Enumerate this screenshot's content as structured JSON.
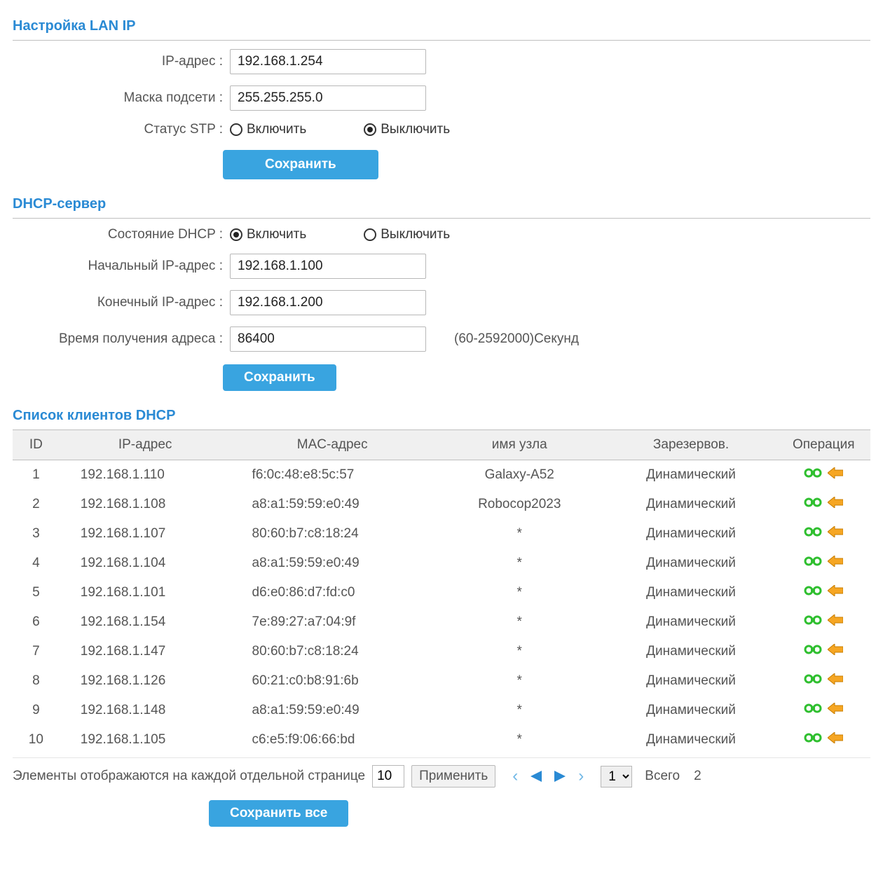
{
  "colors": {
    "accent": "#2a8ad4",
    "button_bg": "#39a4e0",
    "text": "#555555",
    "border": "#bfbfbf",
    "header_bg": "#f0f0f0",
    "op_link": "#2fbf2f",
    "op_arrow": "#f6a623"
  },
  "lan": {
    "title": "Настройка LAN IP",
    "ip_label": "IP-адрес :",
    "ip_value": "192.168.1.254",
    "mask_label": "Маска подсети :",
    "mask_value": "255.255.255.0",
    "stp_label": "Статус STP :",
    "stp_on": "Включить",
    "stp_off": "Выключить",
    "stp_selected": "off",
    "save": "Сохранить"
  },
  "dhcp": {
    "title": "DHCP-сервер",
    "state_label": "Состояние DHCP :",
    "state_on": "Включить",
    "state_off": "Выключить",
    "state_selected": "on",
    "start_label": "Начальный IP-адрес :",
    "start_value": "192.168.1.100",
    "end_label": "Конечный IP-адрес :",
    "end_value": "192.168.1.200",
    "lease_label": "Время получения адреса :",
    "lease_value": "86400",
    "lease_hint": "(60-2592000)Секунд",
    "save": "Сохранить"
  },
  "clients": {
    "title": "Список клиентов DHCP",
    "cols": {
      "id": "ID",
      "ip": "IP-адрес",
      "mac": "MAC-адрес",
      "host": "имя узла",
      "reserved": "Зарезервов.",
      "ops": "Операция"
    },
    "rows": [
      {
        "id": "1",
        "ip": "192.168.1.110",
        "mac": "f6:0c:48:e8:5c:57",
        "host": "Galaxy-A52",
        "reserved": "Динамический"
      },
      {
        "id": "2",
        "ip": "192.168.1.108",
        "mac": "a8:a1:59:59:e0:49",
        "host": "Robocop2023",
        "reserved": "Динамический"
      },
      {
        "id": "3",
        "ip": "192.168.1.107",
        "mac": "80:60:b7:c8:18:24",
        "host": "*",
        "reserved": "Динамический"
      },
      {
        "id": "4",
        "ip": "192.168.1.104",
        "mac": "a8:a1:59:59:e0:49",
        "host": "*",
        "reserved": "Динамический"
      },
      {
        "id": "5",
        "ip": "192.168.1.101",
        "mac": "d6:e0:86:d7:fd:c0",
        "host": "*",
        "reserved": "Динамический"
      },
      {
        "id": "6",
        "ip": "192.168.1.154",
        "mac": "7e:89:27:a7:04:9f",
        "host": "*",
        "reserved": "Динамический"
      },
      {
        "id": "7",
        "ip": "192.168.1.147",
        "mac": "80:60:b7:c8:18:24",
        "host": "*",
        "reserved": "Динамический"
      },
      {
        "id": "8",
        "ip": "192.168.1.126",
        "mac": "60:21:c0:b8:91:6b",
        "host": "*",
        "reserved": "Динамический"
      },
      {
        "id": "9",
        "ip": "192.168.1.148",
        "mac": "a8:a1:59:59:e0:49",
        "host": "*",
        "reserved": "Динамический"
      },
      {
        "id": "10",
        "ip": "192.168.1.105",
        "mac": "c6:e5:f9:06:66:bd",
        "host": "*",
        "reserved": "Динамический"
      }
    ]
  },
  "pager": {
    "per_page_label": "Элементы отображаются на каждой отдельной странице",
    "per_page_value": "10",
    "apply": "Применить",
    "page_options": [
      "1"
    ],
    "page_selected": "1",
    "total_label": "Всего",
    "total_value": "2"
  },
  "save_all": "Сохранить все"
}
